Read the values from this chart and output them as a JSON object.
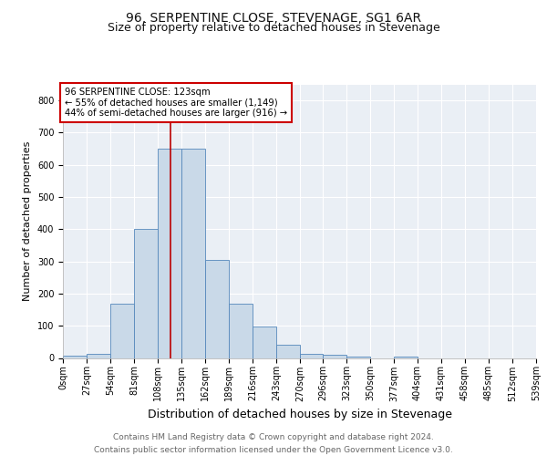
{
  "title": "96, SERPENTINE CLOSE, STEVENAGE, SG1 6AR",
  "subtitle": "Size of property relative to detached houses in Stevenage",
  "xlabel": "Distribution of detached houses by size in Stevenage",
  "ylabel": "Number of detached properties",
  "bin_edges": [
    0,
    27,
    54,
    81,
    108,
    135,
    162,
    189,
    216,
    243,
    270,
    296,
    323,
    350,
    377,
    404,
    431,
    458,
    485,
    512,
    539
  ],
  "bar_heights": [
    7,
    12,
    170,
    400,
    650,
    650,
    305,
    170,
    97,
    40,
    14,
    10,
    5,
    0,
    5,
    0,
    0,
    0,
    0,
    0
  ],
  "bar_color": "#c9d9e8",
  "bar_edge_color": "#5588bb",
  "property_size": 123,
  "red_line_color": "#bb0000",
  "annotation_text": "96 SERPENTINE CLOSE: 123sqm\n← 55% of detached houses are smaller (1,149)\n44% of semi-detached houses are larger (916) →",
  "annotation_box_color": "#cc0000",
  "ylim": [
    0,
    850
  ],
  "yticks": [
    0,
    100,
    200,
    300,
    400,
    500,
    600,
    700,
    800
  ],
  "background_color": "#eaeff5",
  "footer_text": "Contains HM Land Registry data © Crown copyright and database right 2024.\nContains public sector information licensed under the Open Government Licence v3.0.",
  "title_fontsize": 10,
  "subtitle_fontsize": 9,
  "xlabel_fontsize": 9,
  "ylabel_fontsize": 8,
  "tick_fontsize": 7,
  "footer_fontsize": 6.5
}
